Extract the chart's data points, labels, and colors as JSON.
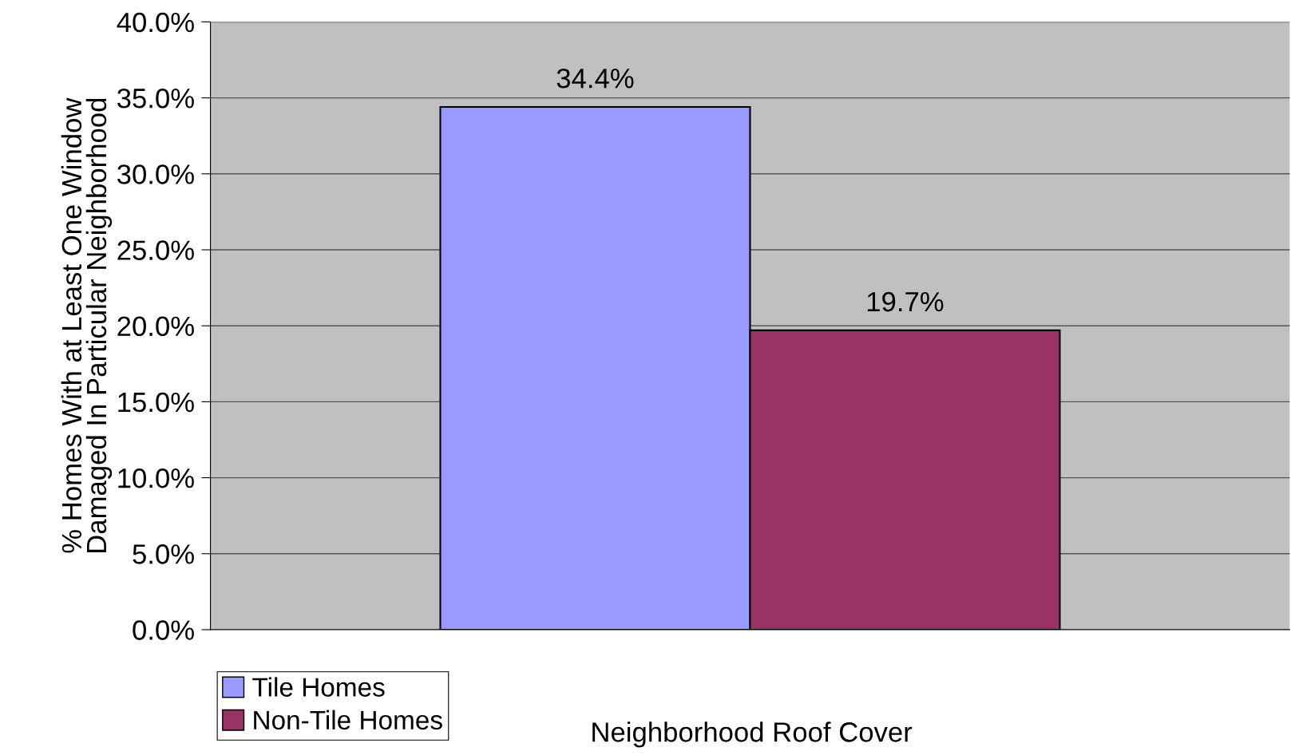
{
  "chart_data": {
    "type": "bar",
    "xlabel": "Neighborhood Roof Cover",
    "ylabel": "% Homes With at Least One Window\nDamaged In Particular Neighborhood",
    "categories": [
      null
    ],
    "series": [
      {
        "name": "Tile Homes",
        "color": "#9999ff",
        "values": [
          34.4
        ],
        "value_labels": [
          "34.4%"
        ]
      },
      {
        "name": "Non-Tile Homes",
        "color": "#993366",
        "values": [
          19.7
        ],
        "value_labels": [
          "19.7%"
        ]
      }
    ],
    "ylim": [
      0,
      40
    ],
    "yticks": [
      {
        "value": 0,
        "label": "0.0%"
      },
      {
        "value": 5,
        "label": "5.0%"
      },
      {
        "value": 10,
        "label": "10.0%"
      },
      {
        "value": 15,
        "label": "15.0%"
      },
      {
        "value": 20,
        "label": "20.0%"
      },
      {
        "value": 25,
        "label": "25.0%"
      },
      {
        "value": 30,
        "label": "30.0%"
      },
      {
        "value": 35,
        "label": "35.0%"
      },
      {
        "value": 40,
        "label": "40.0%"
      }
    ],
    "grid": "y",
    "legend": "bottom left"
  }
}
